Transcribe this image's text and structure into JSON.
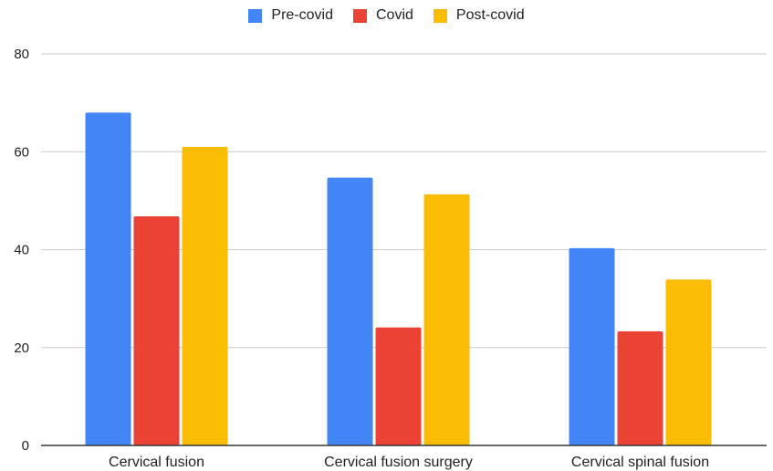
{
  "chart_data": {
    "type": "bar",
    "categories": [
      "Cervical fusion",
      "Cervical fusion surgery",
      "Cervical spinal fusion"
    ],
    "series": [
      {
        "name": "Pre-covid",
        "values": [
          68,
          54.7,
          40.3
        ],
        "color": "#4285F4"
      },
      {
        "name": "Covid",
        "values": [
          46.8,
          24.1,
          23.3
        ],
        "color": "#EA4335"
      },
      {
        "name": "Post-covid",
        "values": [
          61,
          51.3,
          33.9
        ],
        "color": "#FBBC04"
      }
    ],
    "title": "",
    "xlabel": "",
    "ylabel": "",
    "ylim": [
      0,
      80
    ],
    "yticks": [
      "0",
      "20",
      "40",
      "60",
      "80"
    ],
    "grid": true,
    "legend_position": "top-center"
  }
}
